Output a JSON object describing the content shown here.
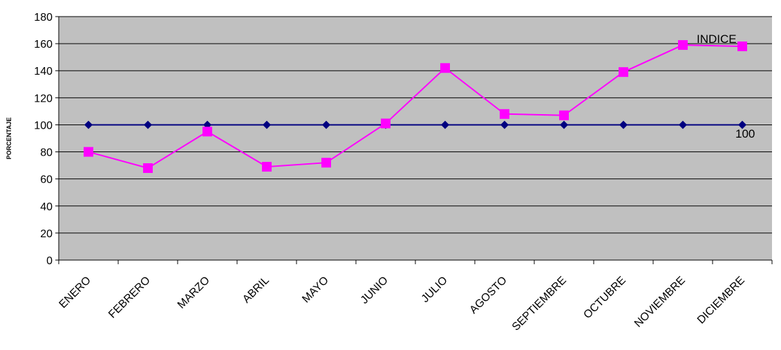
{
  "chart_data": {
    "type": "line",
    "categories": [
      "ENERO",
      "FEBRERO",
      "MARZO",
      "ABRIL",
      "MAYO",
      "JUNIO",
      "JULIO",
      "AGOSTO",
      "SEPTIEMBRE",
      "OCTUBRE",
      "NOVIEMBRE",
      "DICIEMBRE"
    ],
    "series": [
      {
        "name": "100",
        "color": "#000080",
        "marker": "diamond",
        "values": [
          100,
          100,
          100,
          100,
          100,
          100,
          100,
          100,
          100,
          100,
          100,
          100
        ]
      },
      {
        "name": "INDICE",
        "color": "#ff00ff",
        "marker": "square",
        "values": [
          80,
          68,
          95,
          69,
          72,
          101,
          142,
          108,
          107,
          139,
          159,
          158
        ]
      }
    ],
    "title": "",
    "xlabel": "",
    "ylabel": "PORCENTAJE",
    "ylim": [
      0,
      180
    ],
    "yticks": [
      0,
      20,
      40,
      60,
      80,
      100,
      120,
      140,
      160,
      180
    ],
    "grid": true,
    "plot_background": "#c0c0c0",
    "gridline_color": "#000000",
    "legend": "none"
  }
}
